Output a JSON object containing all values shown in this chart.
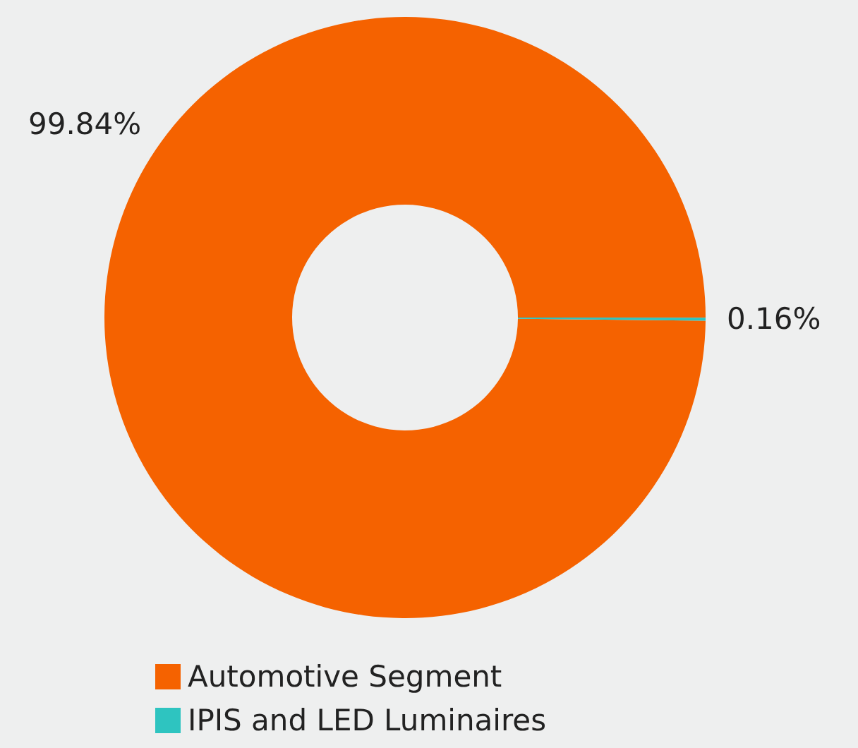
{
  "chart_data": {
    "type": "donut",
    "categories": [
      "Automotive Segment",
      "IPIS and LED Luminaires"
    ],
    "values": [
      99.84,
      0.16
    ],
    "colors": [
      "#f56200",
      "#2ec4c0"
    ],
    "value_labels": [
      "99.84%",
      "0.16%"
    ],
    "legend": "bottom"
  }
}
